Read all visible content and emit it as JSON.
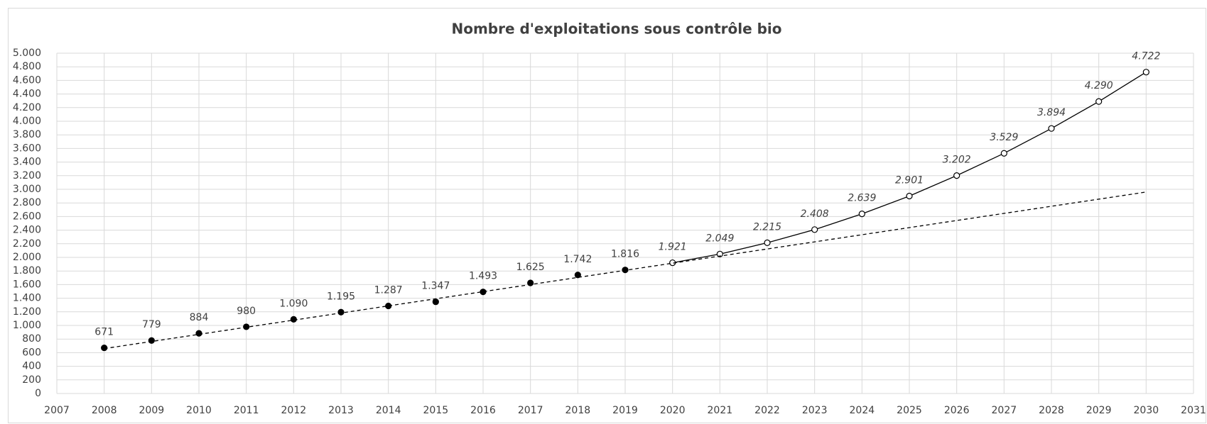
{
  "chart_data": {
    "type": "line",
    "title": "Nombre d'exploitations sous contrôle bio",
    "xlim": [
      2007,
      2031
    ],
    "xticks": [
      2007,
      2008,
      2009,
      2010,
      2011,
      2012,
      2013,
      2014,
      2015,
      2016,
      2017,
      2018,
      2019,
      2020,
      2021,
      2022,
      2023,
      2024,
      2025,
      2026,
      2027,
      2028,
      2029,
      2030,
      2031
    ],
    "ylim": [
      0,
      5000
    ],
    "yticks": [
      0,
      200,
      400,
      600,
      800,
      {
        "value": 1000,
        "label": "1.000"
      },
      {
        "value": 1200,
        "label": "1.200"
      },
      {
        "value": 1400,
        "label": "1.400"
      },
      {
        "value": 1600,
        "label": "1.600"
      },
      {
        "value": 1800,
        "label": "1.800"
      },
      {
        "value": 2000,
        "label": "2.000"
      },
      {
        "value": 2200,
        "label": "2.200"
      },
      {
        "value": 2400,
        "label": "2.400"
      },
      {
        "value": 2600,
        "label": "2.600"
      },
      {
        "value": 2800,
        "label": "2.800"
      },
      {
        "value": 3000,
        "label": "3.000"
      },
      {
        "value": 3200,
        "label": "3.200"
      },
      {
        "value": 3400,
        "label": "3.400"
      },
      {
        "value": 3600,
        "label": "3.600"
      },
      {
        "value": 3800,
        "label": "3.800"
      },
      {
        "value": 4000,
        "label": "4.000"
      },
      {
        "value": 4200,
        "label": "4.200"
      },
      {
        "value": 4400,
        "label": "4.400"
      },
      {
        "value": 4600,
        "label": "4.600"
      },
      {
        "value": 4800,
        "label": "4.800"
      },
      {
        "value": 5000,
        "label": "5.000"
      }
    ],
    "grid": true,
    "series": [
      {
        "color": "#000000",
        "marker": "filled",
        "line": "none",
        "label_style": "normal",
        "x": [
          2008,
          2009,
          2010,
          2011,
          2012,
          2013,
          2014,
          2015,
          2016,
          2017,
          2018,
          2019
        ],
        "values": [
          671,
          779,
          884,
          980,
          1090,
          1195,
          1287,
          1347,
          1493,
          1625,
          1742,
          1816
        ],
        "value_labels": [
          "671",
          "779",
          "884",
          "980",
          "1.090",
          "1.195",
          "1.287",
          "1.347",
          "1.493",
          "1.625",
          "1.742",
          "1.816"
        ]
      },
      {
        "color": "#000000",
        "marker": "open",
        "line": "solid",
        "label_style": "italic",
        "x": [
          2020,
          2021,
          2022,
          2023,
          2024,
          2025,
          2026,
          2027,
          2028,
          2029,
          2030
        ],
        "values": [
          1921,
          2049,
          2215,
          2408,
          2639,
          2901,
          3202,
          3529,
          3894,
          4290,
          4722
        ],
        "value_labels": [
          "1.921",
          "2.049",
          "2.215",
          "2.408",
          "2.639",
          "2.901",
          "3.202",
          "3.529",
          "3.894",
          "4.290",
          "4.722"
        ]
      },
      {
        "color": "#000000",
        "marker": "none",
        "line": "dashed",
        "x": [
          2008,
          2030
        ],
        "values": [
          660,
          2960
        ]
      }
    ]
  }
}
